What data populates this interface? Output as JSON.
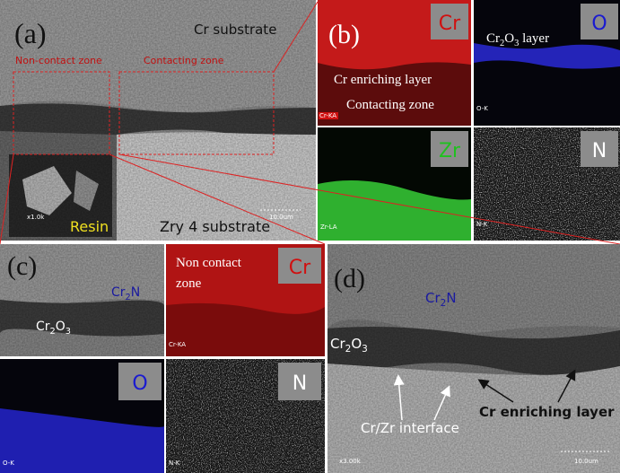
{
  "panel_a": {
    "label": "(a)",
    "cr_substrate": "Cr substrate",
    "non_contact": "Non-contact zone",
    "contacting": "Contacting zone",
    "resin": "Resin",
    "zry": "Zry 4 substrate",
    "mag": "x1.0k",
    "scale": "10.0um"
  },
  "panel_b": {
    "label": "(b)",
    "cr_map": {
      "element": "Cr",
      "layer": "Cr enriching layer",
      "zone": "Contacting zone",
      "tag": "Cr-KA"
    },
    "o_map": {
      "element": "O",
      "layer": [
        "Cr",
        "2",
        "O",
        "3",
        " layer"
      ],
      "tag": "O-K"
    },
    "zr_map": {
      "element": "Zr",
      "tag": "Zr-LA"
    },
    "n_map": {
      "element": "N",
      "tag": "N-K"
    }
  },
  "panel_c": {
    "label": "(c)",
    "cr2n": [
      "Cr",
      "2",
      "N"
    ],
    "cr2o3": [
      "Cr",
      "2",
      "O",
      "3"
    ],
    "cr_map": {
      "element": "Cr",
      "zone": [
        "Non contact",
        "zone"
      ],
      "tag": "Cr-KA"
    },
    "o_map": {
      "element": "O",
      "tag": "O-K"
    },
    "n_map": {
      "element": "N",
      "tag": "N-K"
    }
  },
  "panel_d": {
    "label": "(d)",
    "cr2n": [
      "Cr",
      "2",
      "N"
    ],
    "cr2o3": [
      "Cr",
      "2",
      "O",
      "3"
    ],
    "interface": "Cr/Zr interface",
    "enriching": "Cr enriching layer",
    "mag": "x3.00k",
    "scale": "10.0um"
  }
}
